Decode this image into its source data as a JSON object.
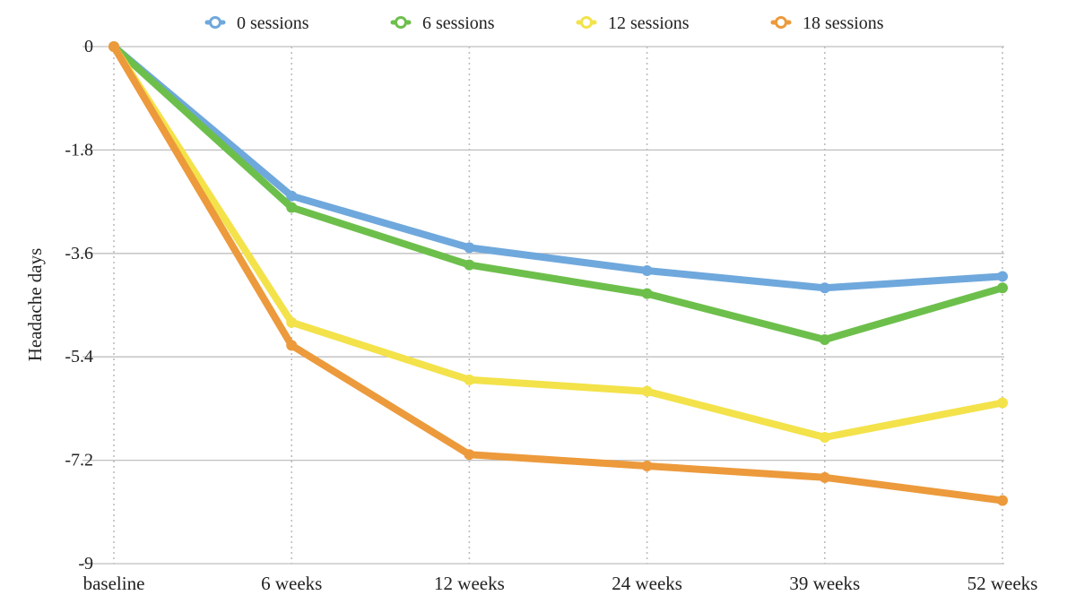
{
  "chart_data": {
    "type": "line",
    "title": "",
    "xlabel": "",
    "ylabel": "Headache days",
    "categories": [
      "baseline",
      "6 weeks",
      "12 weeks",
      "24 weeks",
      "39 weeks",
      "52 weeks"
    ],
    "yticks": [
      "0",
      "-1.8",
      "-3.6",
      "-5.4",
      "-7.2",
      "-9"
    ],
    "ylim": [
      -9,
      0
    ],
    "legend_position": "top",
    "series": [
      {
        "name": "0 sessions",
        "color": "#6fa8dc",
        "values": [
          0,
          -2.6,
          -3.5,
          -3.9,
          -4.2,
          -4.0
        ]
      },
      {
        "name": "6 sessions",
        "color": "#6dbf4b",
        "values": [
          0,
          -2.8,
          -3.8,
          -4.3,
          -5.1,
          -4.2
        ]
      },
      {
        "name": "12 sessions",
        "color": "#f3e24a",
        "values": [
          0,
          -4.8,
          -5.8,
          -6.0,
          -6.8,
          -6.2
        ]
      },
      {
        "name": "18 sessions",
        "color": "#ec9a3c",
        "values": [
          0,
          -5.2,
          -7.1,
          -7.3,
          -7.5,
          -7.9
        ]
      }
    ]
  }
}
